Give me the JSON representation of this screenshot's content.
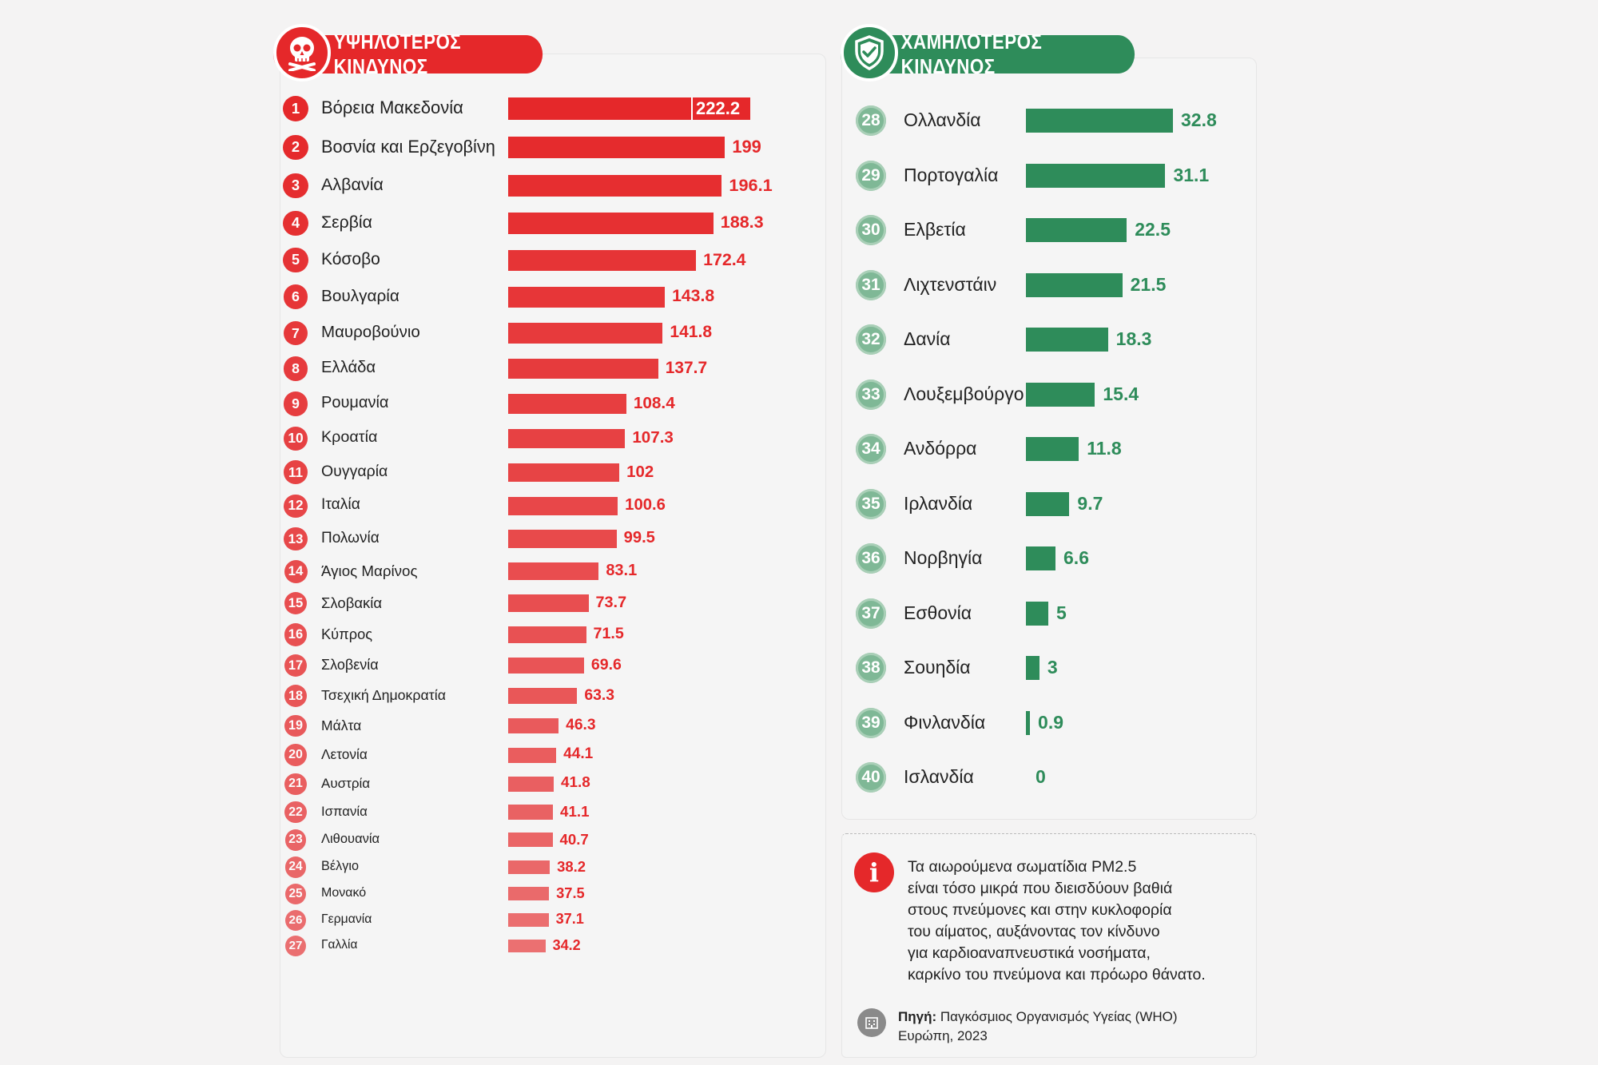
{
  "headers": {
    "high": "ΥΨΗΛΟΤΕΡΟΣ ΚΙΝΔΥΝΟΣ",
    "low": "ΧΑΜΗΛΟΤΕΡΟΣ ΚΙΝΔΥΝΟΣ"
  },
  "icons": {
    "high": "skull-icon",
    "low": "shield-check-icon",
    "info": "info-icon",
    "source": "building-icon"
  },
  "colors": {
    "high": "#e5282a",
    "low": "#2e8c5a"
  },
  "chart_data": [
    {
      "type": "bar",
      "orientation": "horizontal",
      "title": "ΥΨΗΛΟΤΕΡΟΣ ΚΙΝΔΥΝΟΣ",
      "ranks": [
        "1",
        "2",
        "3",
        "4",
        "5",
        "6",
        "7",
        "8",
        "9",
        "10",
        "11",
        "12",
        "13",
        "14",
        "15",
        "16",
        "17",
        "18",
        "19",
        "20",
        "21",
        "22",
        "23",
        "24",
        "25",
        "26",
        "27"
      ],
      "categories": [
        "Βόρεια Μακεδονία",
        "Βοσνία και Ερζεγοβίνη",
        "Αλβανία",
        "Σερβία",
        "Κόσοβο",
        "Βουλγαρία",
        "Μαυροβούνιο",
        "Ελλάδα",
        "Ρουμανία",
        "Κροατία",
        "Ουγγαρία",
        "Ιταλία",
        "Πολωνία",
        "Άγιος Μαρίνος",
        "Σλοβακία",
        "Κύπρος",
        "Σλοβενία",
        "Τσεχική Δημοκρατία",
        "Μάλτα",
        "Λετονία",
        "Αυστρία",
        "Ισπανία",
        "Λιθουανία",
        "Βέλγιο",
        "Μονακό",
        "Γερμανία",
        "Γαλλία"
      ],
      "values": [
        222.2,
        199,
        196.1,
        188.3,
        172.4,
        143.8,
        141.8,
        137.7,
        108.4,
        107.3,
        102,
        100.6,
        99.5,
        83.1,
        73.7,
        71.5,
        69.6,
        63.3,
        46.3,
        44.1,
        41.8,
        41.1,
        40.7,
        38.2,
        37.5,
        37.1,
        34.2
      ],
      "labels": [
        "222.2",
        "199",
        "196.1",
        "188.3",
        "172.4",
        "143.8",
        "141.8",
        "137.7",
        "108.4",
        "107.3",
        "102",
        "100.6",
        "99.5",
        "83.1",
        "73.7",
        "71.5",
        "69.6",
        "63.3",
        "46.3",
        "44.1",
        "41.8",
        "41.1",
        "40.7",
        "38.2",
        "37.5",
        "37.1",
        "34.2"
      ]
    },
    {
      "type": "bar",
      "orientation": "horizontal",
      "title": "ΧΑΜΗΛΟΤΕΡΟΣ ΚΙΝΔΥΝΟΣ",
      "ranks": [
        "28",
        "29",
        "30",
        "31",
        "32",
        "33",
        "34",
        "35",
        "36",
        "37",
        "38",
        "39",
        "40"
      ],
      "categories": [
        "Ολλανδία",
        "Πορτογαλία",
        "Ελβετία",
        "Λιχτενστάιν",
        "Δανία",
        "Λουξεμβούργο",
        "Ανδόρρα",
        "Ιρλανδία",
        "Νορβηγία",
        "Εσθονία",
        "Σουηδία",
        "Φινλανδία",
        "Ισλανδία"
      ],
      "values": [
        32.8,
        31.1,
        22.5,
        21.5,
        18.3,
        15.4,
        11.8,
        9.7,
        6.6,
        5,
        3,
        0.9,
        0
      ],
      "labels": [
        "32.8",
        "31.1",
        "22.5",
        "21.5",
        "18.3",
        "15.4",
        "11.8",
        "9.7",
        "6.6",
        "5",
        "3",
        "0.9",
        "0"
      ]
    }
  ],
  "info": {
    "lines": [
      "Τα αιωρούμενα σωματίδια PM2.5",
      "είναι τόσο μικρά που διεισδύουν βαθιά",
      "στους πνεύμονες και στην κυκλοφορία",
      "του αίματος, αυξάνοντας τον κίνδυνο",
      "για καρδιοαναπνευστικά νοσήματα,",
      "καρκίνο του πνεύμονα και πρόωρο θάνατο."
    ],
    "source_label": "Πηγή:",
    "source_text": " Παγκόσμιος Οργανισμός Υγείας (WHO)",
    "source_text2": "Ευρώπη, 2023"
  }
}
